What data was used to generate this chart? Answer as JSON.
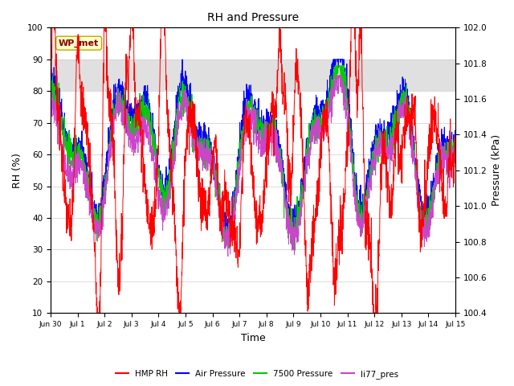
{
  "title": "RH and Pressure",
  "xlabel": "Time",
  "ylabel_left": "RH (%)",
  "ylabel_right": "Pressure (kPa)",
  "ylim_left": [
    10,
    100
  ],
  "ylim_right": [
    100.4,
    102.0
  ],
  "annotation_text": "WP_met",
  "annotation_bbox": {
    "facecolor": "#ffffcc",
    "edgecolor": "#bbaa00",
    "boxstyle": "round,pad=0.3"
  },
  "annotation_color": "#880000",
  "bg_band_color": "#e0e0e0",
  "bg_band_ylim": [
    80,
    90
  ],
  "legend_labels": [
    "HMP RH",
    "Air Pressure",
    "7500 Pressure",
    "li77_pres"
  ],
  "legend_colors": [
    "#ff0000",
    "#0000ff",
    "#00cc00",
    "#cc44cc"
  ],
  "line_colors": {
    "hmp_rh": "#ff0000",
    "air_pressure": "#0000ff",
    "pressure_7500": "#00cc00",
    "li77_pres": "#cc44cc"
  },
  "x_tick_labels": [
    "Jun 30",
    "Jul 1",
    "Jul 2",
    "Jul 3",
    "Jul 4",
    "Jul 5",
    "Jul 6",
    "Jul 7",
    "Jul 8",
    "Jul 9",
    "Jul 10",
    "Jul 11",
    "Jul 12",
    "Jul 13",
    "Jul 14",
    "Jul 15"
  ],
  "x_tick_positions": [
    0,
    1,
    2,
    3,
    4,
    5,
    6,
    7,
    8,
    9,
    10,
    11,
    12,
    13,
    14,
    15
  ],
  "yticks_left": [
    10,
    20,
    30,
    40,
    50,
    60,
    70,
    80,
    90,
    100
  ],
  "yticks_right": [
    100.4,
    100.6,
    100.8,
    101.0,
    101.2,
    101.4,
    101.6,
    101.8,
    102.0
  ],
  "grid_color": "#cccccc",
  "figsize": [
    6.4,
    4.8
  ],
  "dpi": 100
}
